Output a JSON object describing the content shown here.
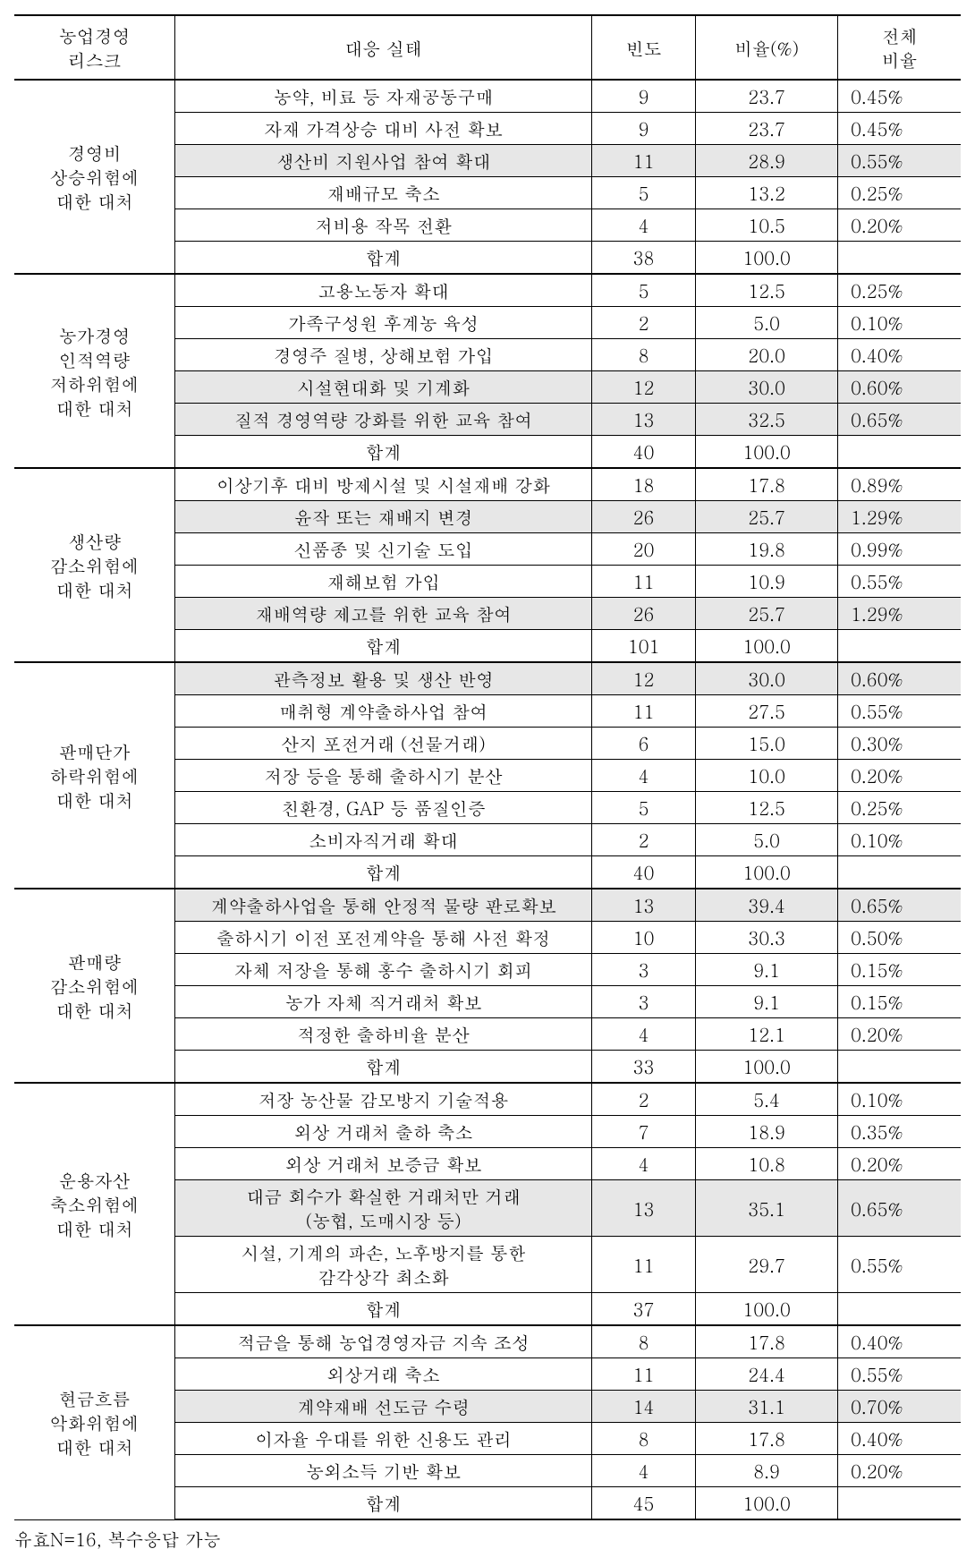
{
  "columns": {
    "cat": "농업경영\n리스크",
    "desc": "대응 실태",
    "freq": "빈도",
    "ratio": "비율(%)",
    "total": "전체\n비율"
  },
  "footnote": "유효N=16, 복수응답 가능",
  "sections": [
    {
      "category": "경영비\n상승위험에\n대한 대처",
      "rows": [
        {
          "desc": "농약, 비료  등 자재공동구매",
          "freq": "9",
          "ratio": "23.7",
          "total": "0.45%"
        },
        {
          "desc": "자재 가격상승 대비 사전 확보",
          "freq": "9",
          "ratio": "23.7",
          "total": "0.45%"
        },
        {
          "desc": "생산비 지원사업 참여 확대",
          "freq": "11",
          "ratio": "28.9",
          "total": "0.55%",
          "hl": true
        },
        {
          "desc": "재배규모 축소",
          "freq": "5",
          "ratio": "13.2",
          "total": "0.25%"
        },
        {
          "desc": "저비용 작목 전환",
          "freq": "4",
          "ratio": "10.5",
          "total": "0.20%"
        },
        {
          "desc": "합계",
          "freq": "38",
          "ratio": "100.0",
          "total": "",
          "sum": true
        }
      ]
    },
    {
      "category": "농가경영\n인적역량\n저하위험에\n대한 대처",
      "rows": [
        {
          "desc": "고용노동자  확대",
          "freq": "5",
          "ratio": "12.5",
          "total": "0.25%"
        },
        {
          "desc": "가족구성원 후계농 육성",
          "freq": "2",
          "ratio": "5.0",
          "total": "0.10%"
        },
        {
          "desc": "경영주 질병, 상해보험 가입",
          "freq": "8",
          "ratio": "20.0",
          "total": "0.40%"
        },
        {
          "desc": "시설현대화 및 기계화",
          "freq": "12",
          "ratio": "30.0",
          "total": "0.60%",
          "hl": true
        },
        {
          "desc": "질적 경영역량 강화를 위한 교육 참여",
          "freq": "13",
          "ratio": "32.5",
          "total": "0.65%",
          "hl": true
        },
        {
          "desc": "합계",
          "freq": "40",
          "ratio": "100.0",
          "total": "",
          "sum": true
        }
      ]
    },
    {
      "category": "생산량\n감소위험에\n대한 대처",
      "rows": [
        {
          "desc": "이상기후 대비 방제시설 및 시설재배 강화",
          "freq": "18",
          "ratio": "17.8",
          "total": "0.89%"
        },
        {
          "desc": "윤작 또는 재배지 변경",
          "freq": "26",
          "ratio": "25.7",
          "total": "1.29%",
          "hl": true
        },
        {
          "desc": "신품종 및 신기술 도입",
          "freq": "20",
          "ratio": "19.8",
          "total": "0.99%"
        },
        {
          "desc": "재해보험 가입",
          "freq": "11",
          "ratio": "10.9",
          "total": "0.55%"
        },
        {
          "desc": "재배역량 제고를 위한 교육 참여",
          "freq": "26",
          "ratio": "25.7",
          "total": "1.29%",
          "hl": true
        },
        {
          "desc": "합계",
          "freq": "101",
          "ratio": "100.0",
          "total": "",
          "sum": true
        }
      ]
    },
    {
      "category": "판매단가\n하락위험에\n대한 대처",
      "rows": [
        {
          "desc": "관측정보 활용  및 생산 반영",
          "freq": "12",
          "ratio": "30.0",
          "total": "0.60%",
          "hl": true
        },
        {
          "desc": "매취형 계약출하사업 참여",
          "freq": "11",
          "ratio": "27.5",
          "total": "0.55%"
        },
        {
          "desc": "산지 포전거래 (선물거래)",
          "freq": "6",
          "ratio": "15.0",
          "total": "0.30%"
        },
        {
          "desc": "저장 등을 통해 출하시기 분산",
          "freq": "4",
          "ratio": "10.0",
          "total": "0.20%"
        },
        {
          "desc": "친환경, GAP 등 품질인증",
          "freq": "5",
          "ratio": "12.5",
          "total": "0.25%"
        },
        {
          "desc": "소비자직거래 확대",
          "freq": "2",
          "ratio": "5.0",
          "total": "0.10%"
        },
        {
          "desc": "합계",
          "freq": "40",
          "ratio": "100.0",
          "total": "",
          "sum": true
        }
      ]
    },
    {
      "category": "판매량\n감소위험에\n대한 대처",
      "rows": [
        {
          "desc": "계약출하사업을 통해 안정적 물량 판로확보",
          "freq": "13",
          "ratio": "39.4",
          "total": "0.65%",
          "hl": true
        },
        {
          "desc": "출하시기 이전 포전계약을 통해 사전 확정",
          "freq": "10",
          "ratio": "30.3",
          "total": "0.50%"
        },
        {
          "desc": "자체 저장을 통해 홍수 출하시기 회피",
          "freq": "3",
          "ratio": "9.1",
          "total": "0.15%"
        },
        {
          "desc": "농가 자체 직거래처 확보",
          "freq": "3",
          "ratio": "9.1",
          "total": "0.15%"
        },
        {
          "desc": "적정한 출하비율 분산",
          "freq": "4",
          "ratio": "12.1",
          "total": "0.20%"
        },
        {
          "desc": "합계",
          "freq": "33",
          "ratio": "100.0",
          "total": "",
          "sum": true
        }
      ]
    },
    {
      "category": "운용자산\n축소위험에\n대한 대처",
      "rows": [
        {
          "desc": "저장 농산물  감모방지 기술적용",
          "freq": "2",
          "ratio": "5.4",
          "total": "0.10%"
        },
        {
          "desc": "외상 거래처 출하 축소",
          "freq": "7",
          "ratio": "18.9",
          "total": "0.35%"
        },
        {
          "desc": "외상 거래처 보증금 확보",
          "freq": "4",
          "ratio": "10.8",
          "total": "0.20%"
        },
        {
          "desc": "대금 회수가 확실한 거래처만 거래\n(농협, 도매시장 등)",
          "freq": "13",
          "ratio": "35.1",
          "total": "0.65%",
          "hl": true
        },
        {
          "desc": "시설, 기계의 파손, 노후방지를 통한\n감각상각 최소화",
          "freq": "11",
          "ratio": "29.7",
          "total": "0.55%"
        },
        {
          "desc": "합계",
          "freq": "37",
          "ratio": "100.0",
          "total": "",
          "sum": true
        }
      ]
    },
    {
      "category": "현금흐름\n악화위험에\n대한 대처",
      "rows": [
        {
          "desc": "적금을 통해  농업경영자금 지속 조성",
          "freq": "8",
          "ratio": "17.8",
          "total": "0.40%"
        },
        {
          "desc": "외상거래 축소",
          "freq": "11",
          "ratio": "24.4",
          "total": "0.55%"
        },
        {
          "desc": "계약재배 선도금 수령",
          "freq": "14",
          "ratio": "31.1",
          "total": "0.70%",
          "hl": true
        },
        {
          "desc": "이자율 우대를 위한 신용도 관리",
          "freq": "8",
          "ratio": "17.8",
          "total": "0.40%"
        },
        {
          "desc": "농외소득 기반 확보",
          "freq": "4",
          "ratio": "8.9",
          "total": "0.20%"
        },
        {
          "desc": "합계",
          "freq": "45",
          "ratio": "100.0",
          "total": "",
          "sum": true
        }
      ]
    }
  ]
}
